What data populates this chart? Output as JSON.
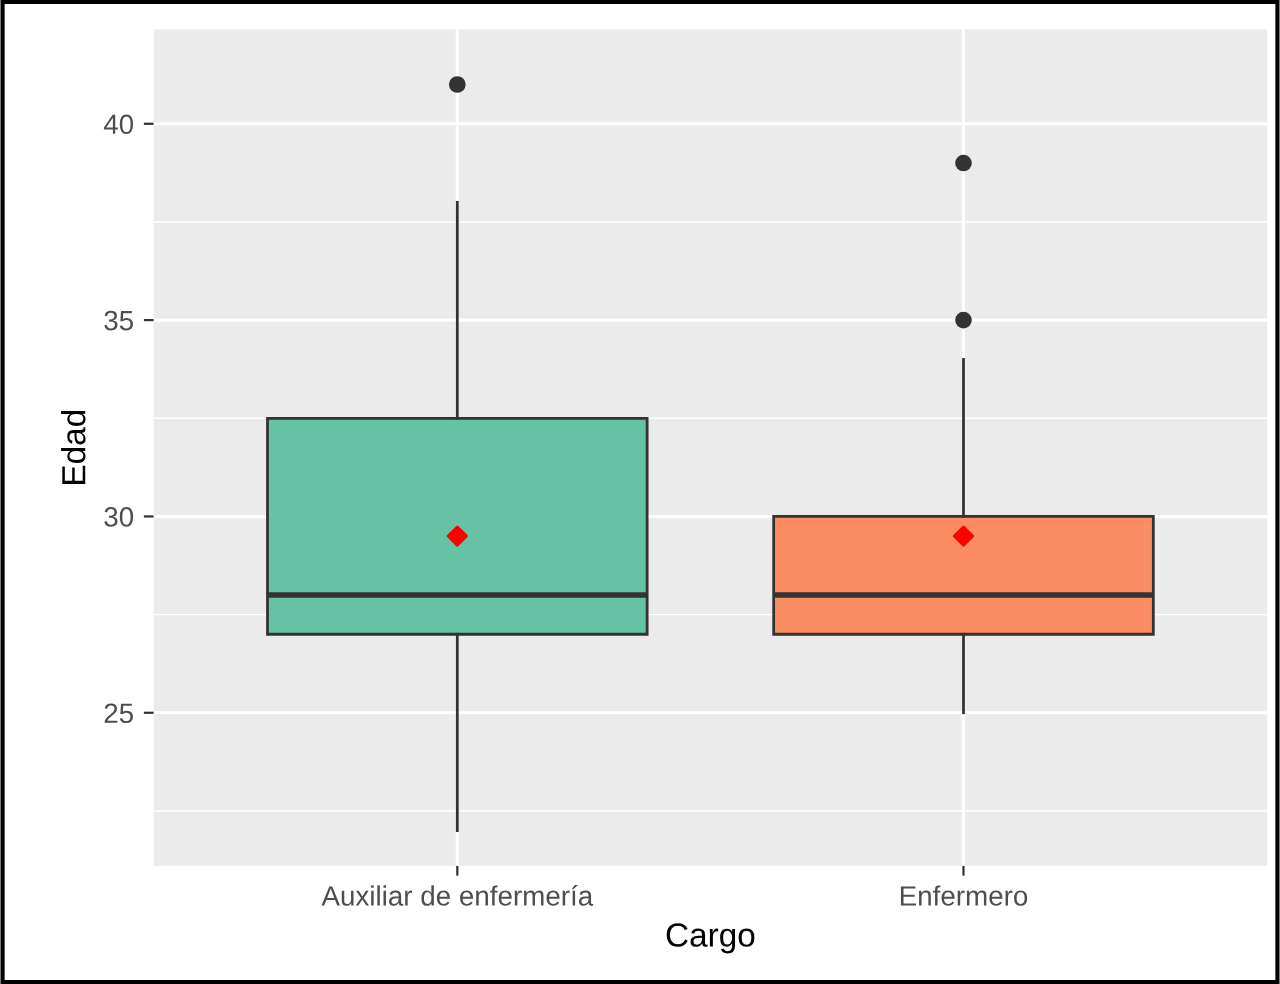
{
  "chart_data": {
    "type": "box",
    "xlabel": "Cargo",
    "ylabel": "Edad",
    "categories": [
      "Auxiliar de enfermería",
      "Enfermero"
    ],
    "colors": [
      "#66c2a5",
      "#fc8d62"
    ],
    "boxes": [
      {
        "low": 22,
        "q1": 27,
        "median": 28,
        "q3": 32.5,
        "high": 38,
        "outliers": [
          41
        ]
      },
      {
        "low": 25,
        "q1": 27,
        "median": 28,
        "q3": 30,
        "high": 34,
        "outliers": [
          35,
          39
        ]
      }
    ],
    "series": [
      {
        "type": "scatter",
        "x": [
          "Auxiliar de enfermería",
          "Enfermero"
        ],
        "values": [
          29.5,
          29.5
        ],
        "color": "#ff0000",
        "marker": "diamond"
      }
    ],
    "ylim": [
      21.1,
      42.4
    ],
    "yticks": [
      25,
      30,
      35,
      40
    ],
    "grid": true,
    "legend": false
  }
}
